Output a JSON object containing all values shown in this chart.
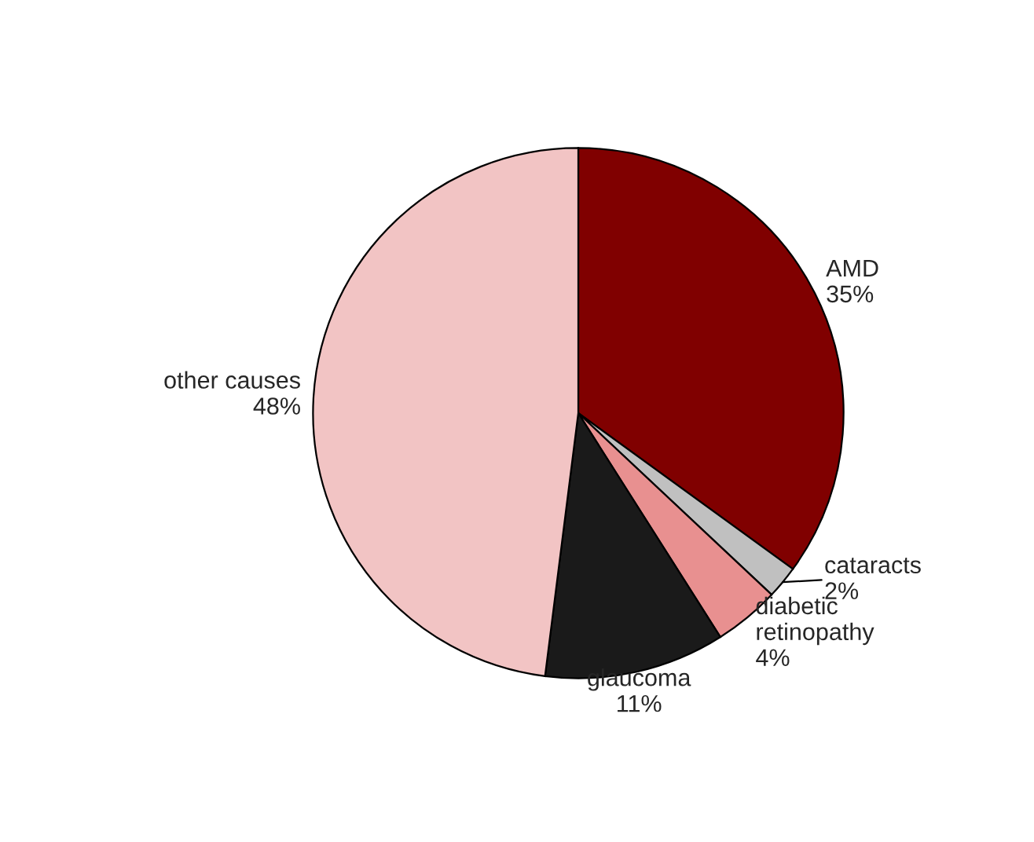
{
  "chart_data": {
    "type": "pie",
    "categories": [
      "AMD",
      "cataracts",
      "diabetic retinopathy",
      "glaucoma",
      "other causes"
    ],
    "values": [
      35,
      2,
      4,
      11,
      48
    ],
    "value_labels": [
      "35%",
      "2%",
      "4%",
      "11%",
      "48%"
    ],
    "colors": [
      "#800000",
      "#c0c0c0",
      "#e89090",
      "#1a1a1a",
      "#f2c4c4"
    ],
    "legend": false
  }
}
